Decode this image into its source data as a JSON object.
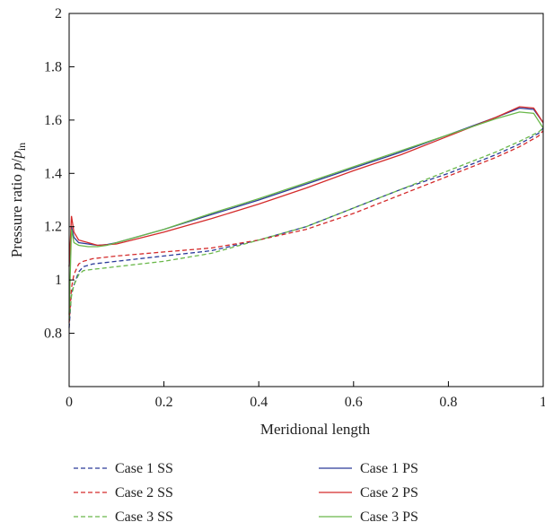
{
  "chart_data": {
    "type": "line",
    "xlabel": "Meridional length",
    "ylabel": {
      "prefix": "Pressure ratio ",
      "var": "p",
      "slash": "/",
      "var2": "p",
      "sub": "in"
    },
    "xlim": [
      0,
      1
    ],
    "ylim": [
      0.6,
      2
    ],
    "xticks": [
      0,
      0.2,
      0.4,
      0.6,
      0.8,
      1
    ],
    "xtick_labels": [
      "0",
      "0.2",
      "0.4",
      "0.6",
      "0.8",
      "1"
    ],
    "yticks": [
      0.8,
      1,
      1.2,
      1.4,
      1.6,
      1.8,
      2
    ],
    "ytick_labels": [
      "0.8",
      "1",
      "1.2",
      "1.4",
      "1.6",
      "1.8",
      "2"
    ],
    "grid": false,
    "legend_position": "bottom",
    "series": [
      {
        "name": "Case 1 SS",
        "color": "#2b3b99",
        "dash": true,
        "x": [
          0,
          0.005,
          0.01,
          0.02,
          0.03,
          0.05,
          0.1,
          0.2,
          0.3,
          0.4,
          0.5,
          0.6,
          0.7,
          0.8,
          0.9,
          0.95,
          0.99,
          1.0
        ],
        "y": [
          0.82,
          0.95,
          0.98,
          1.03,
          1.05,
          1.06,
          1.07,
          1.09,
          1.11,
          1.15,
          1.2,
          1.27,
          1.34,
          1.4,
          1.47,
          1.51,
          1.55,
          1.57
        ]
      },
      {
        "name": "Case 2 SS",
        "color": "#d42a2a",
        "dash": true,
        "x": [
          0,
          0.005,
          0.01,
          0.02,
          0.03,
          0.05,
          0.1,
          0.2,
          0.3,
          0.4,
          0.5,
          0.6,
          0.7,
          0.8,
          0.9,
          0.95,
          0.99,
          1.0
        ],
        "y": [
          0.84,
          0.97,
          1.02,
          1.06,
          1.07,
          1.08,
          1.09,
          1.105,
          1.12,
          1.15,
          1.19,
          1.25,
          1.32,
          1.39,
          1.46,
          1.5,
          1.54,
          1.56
        ]
      },
      {
        "name": "Case 3 SS",
        "color": "#6ab84a",
        "dash": true,
        "x": [
          0,
          0.005,
          0.01,
          0.02,
          0.03,
          0.05,
          0.1,
          0.2,
          0.3,
          0.4,
          0.5,
          0.6,
          0.7,
          0.8,
          0.9,
          0.95,
          0.99,
          1.0
        ],
        "y": [
          0.85,
          0.94,
          0.98,
          1.02,
          1.035,
          1.04,
          1.05,
          1.07,
          1.1,
          1.15,
          1.2,
          1.27,
          1.34,
          1.41,
          1.48,
          1.52,
          1.555,
          1.57
        ]
      },
      {
        "name": "Case 1 PS",
        "color": "#2b3b99",
        "dash": false,
        "x": [
          0,
          0.005,
          0.01,
          0.02,
          0.04,
          0.06,
          0.08,
          0.1,
          0.2,
          0.3,
          0.4,
          0.5,
          0.6,
          0.7,
          0.8,
          0.9,
          0.95,
          0.98,
          1.0
        ],
        "y": [
          1.05,
          1.2,
          1.16,
          1.14,
          1.135,
          1.13,
          1.133,
          1.14,
          1.19,
          1.245,
          1.3,
          1.36,
          1.42,
          1.48,
          1.545,
          1.61,
          1.645,
          1.64,
          1.59
        ]
      },
      {
        "name": "Case 2 PS",
        "color": "#d42a2a",
        "dash": false,
        "x": [
          0,
          0.005,
          0.01,
          0.02,
          0.04,
          0.06,
          0.08,
          0.1,
          0.2,
          0.3,
          0.4,
          0.5,
          0.6,
          0.7,
          0.8,
          0.9,
          0.95,
          0.98,
          1.0
        ],
        "y": [
          1.05,
          1.24,
          1.18,
          1.15,
          1.14,
          1.13,
          1.132,
          1.135,
          1.18,
          1.23,
          1.285,
          1.345,
          1.41,
          1.47,
          1.54,
          1.61,
          1.65,
          1.645,
          1.59
        ]
      },
      {
        "name": "Case 3 PS",
        "color": "#6ab84a",
        "dash": false,
        "x": [
          0,
          0.005,
          0.01,
          0.02,
          0.04,
          0.06,
          0.08,
          0.1,
          0.2,
          0.3,
          0.4,
          0.5,
          0.6,
          0.7,
          0.8,
          0.9,
          0.95,
          0.98,
          1.0
        ],
        "y": [
          0.87,
          1.19,
          1.14,
          1.13,
          1.125,
          1.125,
          1.13,
          1.14,
          1.19,
          1.25,
          1.305,
          1.365,
          1.425,
          1.485,
          1.545,
          1.605,
          1.63,
          1.625,
          1.57
        ]
      }
    ]
  }
}
